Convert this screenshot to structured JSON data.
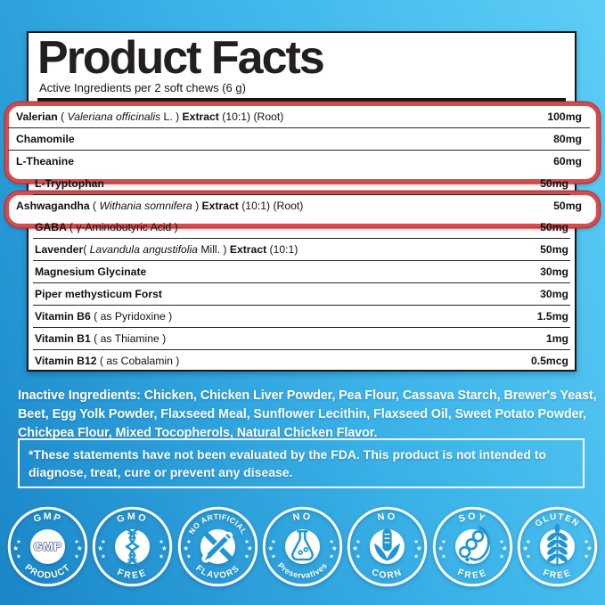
{
  "header": {
    "title": "Product Facts",
    "subtitle": "Active Ingredients per 2 soft chews (6 g)"
  },
  "table": {
    "rows": [
      {
        "highlight": true,
        "amount": "100mg",
        "segments": [
          {
            "t": "Valerian ",
            "s": "b"
          },
          {
            "t": "( ",
            "s": "r"
          },
          {
            "t": "Valeriana officinalis",
            "s": "i"
          },
          {
            "t": " L. ) ",
            "s": "r"
          },
          {
            "t": "Extract",
            "s": "b"
          },
          {
            "t": " (10:1) (Root)",
            "s": "r"
          }
        ]
      },
      {
        "highlight": true,
        "amount": "80mg",
        "segments": [
          {
            "t": "Chamomile",
            "s": "b"
          }
        ]
      },
      {
        "highlight": true,
        "amount": "60mg",
        "segments": [
          {
            "t": "L-Theanine",
            "s": "b"
          }
        ]
      },
      {
        "amount": "50mg",
        "segments": [
          {
            "t": "L-Tryptophan",
            "s": "b"
          }
        ]
      },
      {
        "highlight": true,
        "amount": "50mg",
        "segments": [
          {
            "t": "Ashwagandha ",
            "s": "b"
          },
          {
            "t": "( ",
            "s": "r"
          },
          {
            "t": "Withania somnifera",
            "s": "i"
          },
          {
            "t": " ) ",
            "s": "r"
          },
          {
            "t": "Extract",
            "s": "b"
          },
          {
            "t": " (10:1) (Root)",
            "s": "r"
          }
        ]
      },
      {
        "amount": "50mg",
        "segments": [
          {
            "t": "GABA ",
            "s": "b"
          },
          {
            "t": "( γ-Aminobutyric Acid )",
            "s": "r"
          }
        ]
      },
      {
        "amount": "50mg",
        "segments": [
          {
            "t": "Lavender",
            "s": "b"
          },
          {
            "t": "( ",
            "s": "r"
          },
          {
            "t": "Lavandula angustifolia",
            "s": "i"
          },
          {
            "t": " Mill. ) ",
            "s": "r"
          },
          {
            "t": "Extract",
            "s": "b"
          },
          {
            "t": " (10:1)",
            "s": "r"
          }
        ]
      },
      {
        "amount": "30mg",
        "segments": [
          {
            "t": "Magnesium Glycinate",
            "s": "b"
          }
        ]
      },
      {
        "amount": "30mg",
        "segments": [
          {
            "t": "Piper methysticum Forst",
            "s": "b"
          }
        ]
      },
      {
        "amount": "1.5mg",
        "segments": [
          {
            "t": "Vitamin B6 ",
            "s": "b"
          },
          {
            "t": "( as Pyridoxine )",
            "s": "r"
          }
        ]
      },
      {
        "amount": "1mg",
        "segments": [
          {
            "t": "Vitamin B1 ",
            "s": "b"
          },
          {
            "t": "( as Thiamine )",
            "s": "r"
          }
        ]
      },
      {
        "amount": "0.5mcg",
        "segments": [
          {
            "t": "Vitamin B12 ",
            "s": "b"
          },
          {
            "t": "( as Cobalamin )",
            "s": "r"
          }
        ]
      }
    ]
  },
  "inactive": {
    "text": "Inactive Ingredients: Chicken, Chicken Liver Powder, Pea Flour, Cassava Starch, Brewer's Yeast, Beet, Egg Yolk Powder, Flaxseed Meal, Sunflower Lecithin, Flaxseed Oil, Sweet Potato Powder, Chickpea Flour, Mixed Tocopherols, Natural Chicken Flavor."
  },
  "disclaimer": {
    "text": "*These statements have not been evaluated by the FDA. This product is not intended to diagnose, treat, cure or prevent any disease."
  },
  "badges": [
    {
      "top": "GMP",
      "bottom": "PRODUCT",
      "center": "GMP",
      "icon": "gmp-seal-icon"
    },
    {
      "top": "GMO",
      "bottom": "FREE",
      "icon": "dna-icon"
    },
    {
      "top": "NO ARTIFICIAL",
      "bottom": "FLAVORS",
      "icon": "crossed-pencil-icon"
    },
    {
      "top": "NO",
      "bottom": "Preservatives",
      "icon": "flask-icon"
    },
    {
      "top": "NO",
      "bottom": "CORN",
      "icon": "corn-icon"
    },
    {
      "top": "SOY",
      "bottom": "FREE",
      "icon": "soybean-icon"
    },
    {
      "top": "GLUTEN",
      "bottom": "FREE",
      "icon": "wheat-icon"
    }
  ],
  "colors": {
    "background_light": "#5ecdf6",
    "background_dark": "#1a86c8",
    "highlight_red": "#d64c4d",
    "panel_border": "#161616",
    "badge_icon_blue": "#2095d2"
  }
}
